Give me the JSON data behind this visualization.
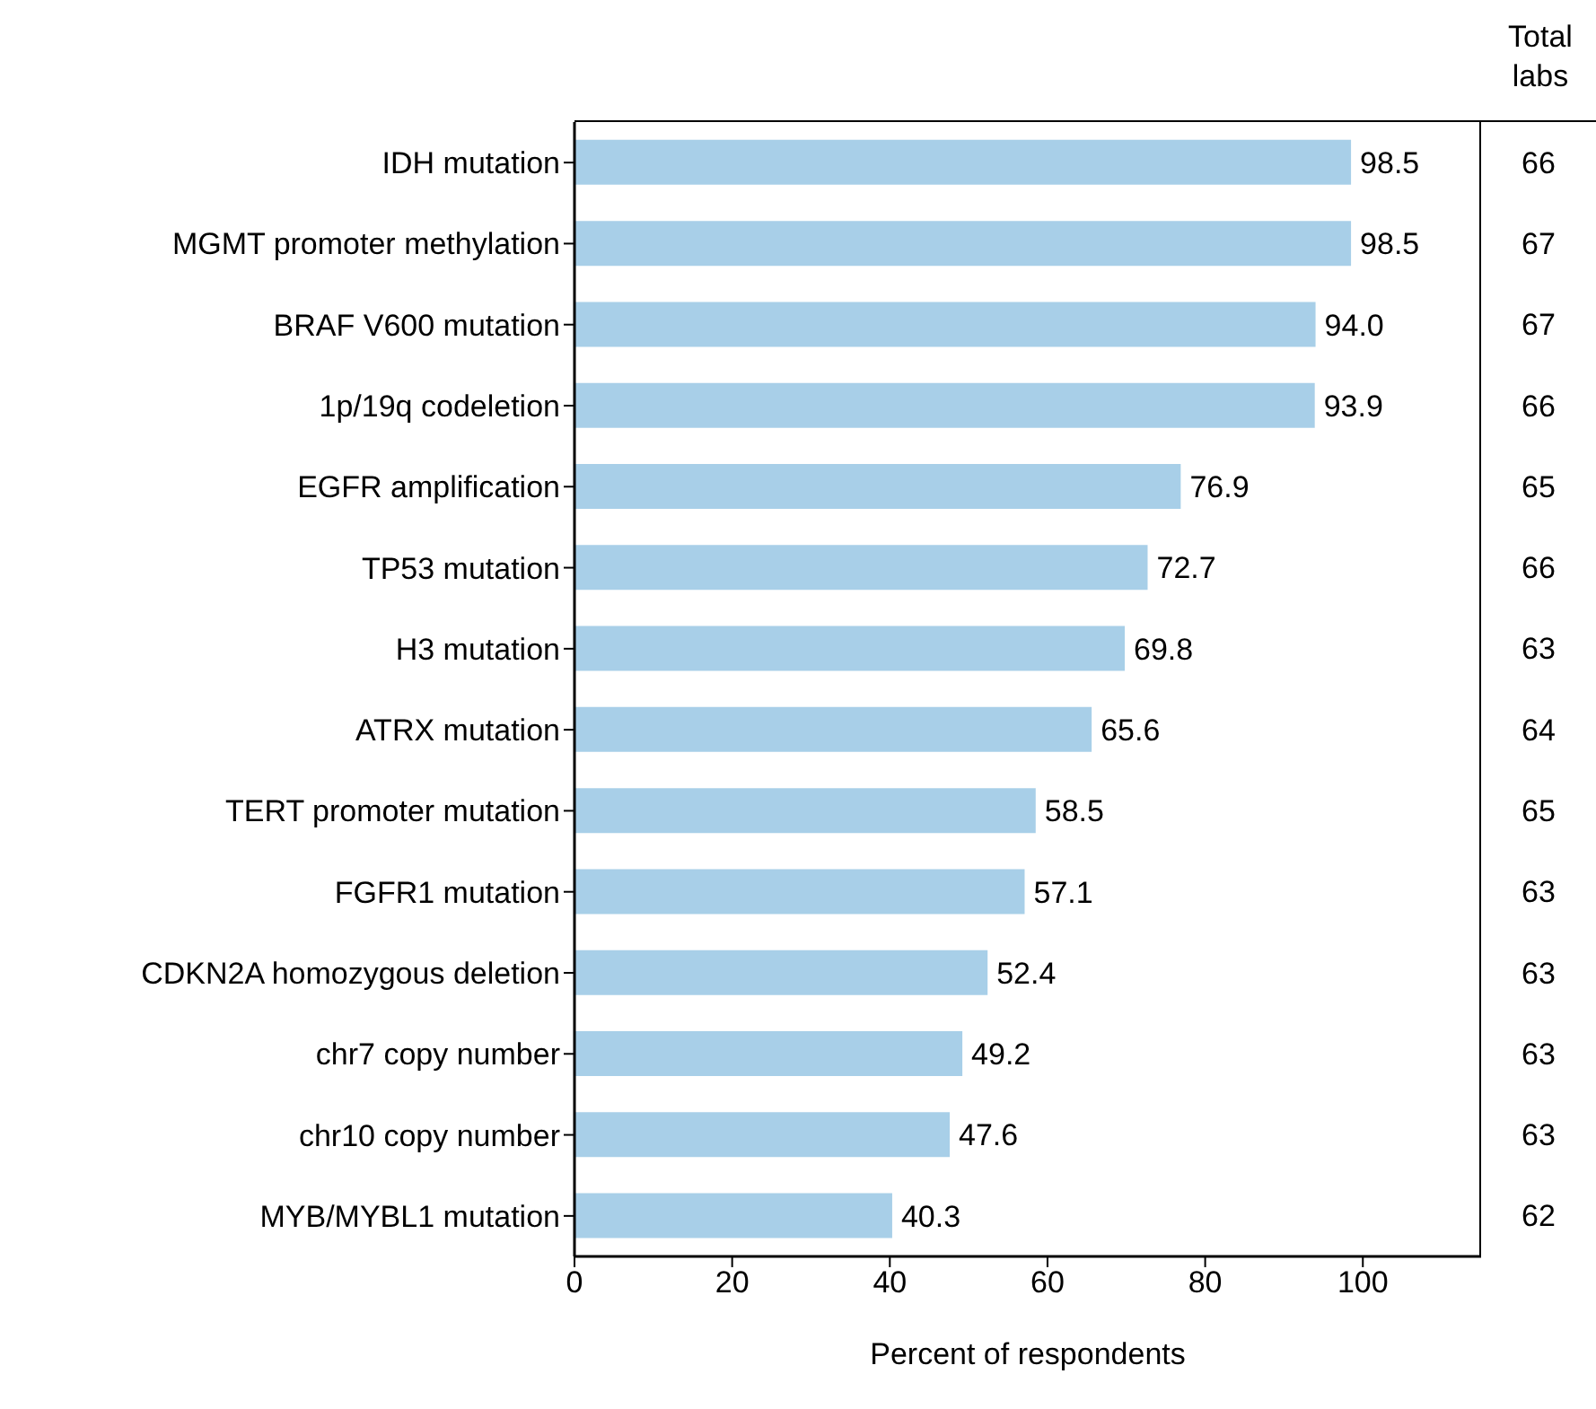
{
  "chart_data": {
    "type": "bar",
    "orientation": "horizontal",
    "xlabel": "Percent of respondents",
    "categories": [
      "IDH mutation",
      "MGMT promoter methylation",
      "BRAF V600 mutation",
      "1p/19q codeletion",
      "EGFR amplification",
      "TP53 mutation",
      "H3 mutation",
      "ATRX mutation",
      "TERT promoter mutation",
      "FGFR1 mutation",
      "CDKN2A homozygous deletion",
      "chr7 copy number",
      "chr10 copy number",
      "MYB/MYBL1 mutation"
    ],
    "values": [
      98.5,
      98.5,
      94.0,
      93.9,
      76.9,
      72.7,
      69.8,
      65.6,
      58.5,
      57.1,
      52.4,
      49.2,
      47.6,
      40.3
    ],
    "value_labels": [
      "98.5",
      "98.5",
      "94.0",
      "93.9",
      "76.9",
      "72.7",
      "69.8",
      "65.6",
      "58.5",
      "57.1",
      "52.4",
      "49.2",
      "47.6",
      "40.3"
    ],
    "color": "#a8cfe8",
    "xlim": [
      0,
      115
    ],
    "xticks": [
      0,
      20,
      40,
      60,
      80,
      100
    ],
    "annotations": [
      "Total labs",
      "66",
      "67",
      "67",
      "66",
      "65",
      "66",
      "63",
      "64",
      "65",
      "63",
      "63",
      "63",
      "63",
      "62"
    ],
    "grid": false,
    "legend": false
  }
}
